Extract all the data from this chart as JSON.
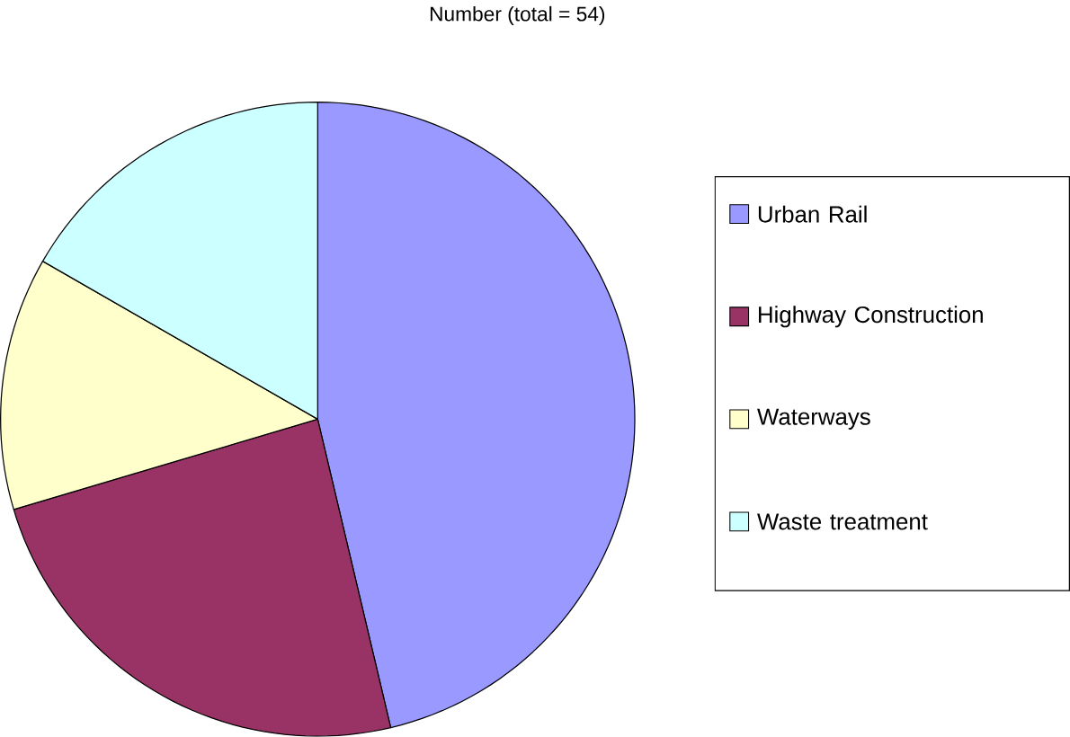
{
  "chart_data": {
    "type": "pie",
    "title": "Number (total = 54)",
    "categories": [
      "Urban Rail",
      "Highway Construction",
      "Waterways",
      "Waste treatment"
    ],
    "values": [
      46.3,
      24.1,
      12.9,
      16.7
    ],
    "colors": [
      "#9999ff",
      "#993366",
      "#ffffcc",
      "#ccffff"
    ],
    "legend": "right"
  }
}
